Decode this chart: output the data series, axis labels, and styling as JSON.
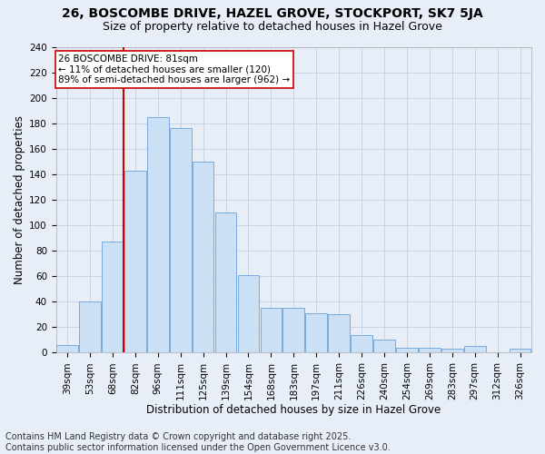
{
  "title1": "26, BOSCOMBE DRIVE, HAZEL GROVE, STOCKPORT, SK7 5JA",
  "title2": "Size of property relative to detached houses in Hazel Grove",
  "xlabel": "Distribution of detached houses by size in Hazel Grove",
  "ylabel": "Number of detached properties",
  "footer1": "Contains HM Land Registry data © Crown copyright and database right 2025.",
  "footer2": "Contains public sector information licensed under the Open Government Licence v3.0.",
  "annotation_title": "26 BOSCOMBE DRIVE: 81sqm",
  "annotation_line1": "← 11% of detached houses are smaller (120)",
  "annotation_line2": "89% of semi-detached houses are larger (962) →",
  "bar_categories": [
    "39sqm",
    "53sqm",
    "68sqm",
    "82sqm",
    "96sqm",
    "111sqm",
    "125sqm",
    "139sqm",
    "154sqm",
    "168sqm",
    "183sqm",
    "197sqm",
    "211sqm",
    "226sqm",
    "240sqm",
    "254sqm",
    "269sqm",
    "283sqm",
    "297sqm",
    "312sqm",
    "326sqm"
  ],
  "bar_values": [
    6,
    40,
    87,
    143,
    185,
    176,
    150,
    110,
    61,
    35,
    35,
    31,
    30,
    14,
    10,
    4,
    4,
    3,
    5,
    0,
    3
  ],
  "bar_face_color": "#cce0f5",
  "bar_edge_color": "#7aaadd",
  "grid_color": "#c8d4e8",
  "bg_color": "#e8eef8",
  "vline_color": "#cc0000",
  "vline_bin": 3,
  "ylim": [
    0,
    240
  ],
  "yticks": [
    0,
    20,
    40,
    60,
    80,
    100,
    120,
    140,
    160,
    180,
    200,
    220,
    240
  ],
  "title1_fontsize": 10,
  "title2_fontsize": 9,
  "xlabel_fontsize": 8.5,
  "ylabel_fontsize": 8.5,
  "tick_fontsize": 7.5,
  "footer_fontsize": 7,
  "annotation_fontsize": 7.5,
  "annotation_box_color": "#ffffff",
  "annotation_box_edgecolor": "#cc0000"
}
